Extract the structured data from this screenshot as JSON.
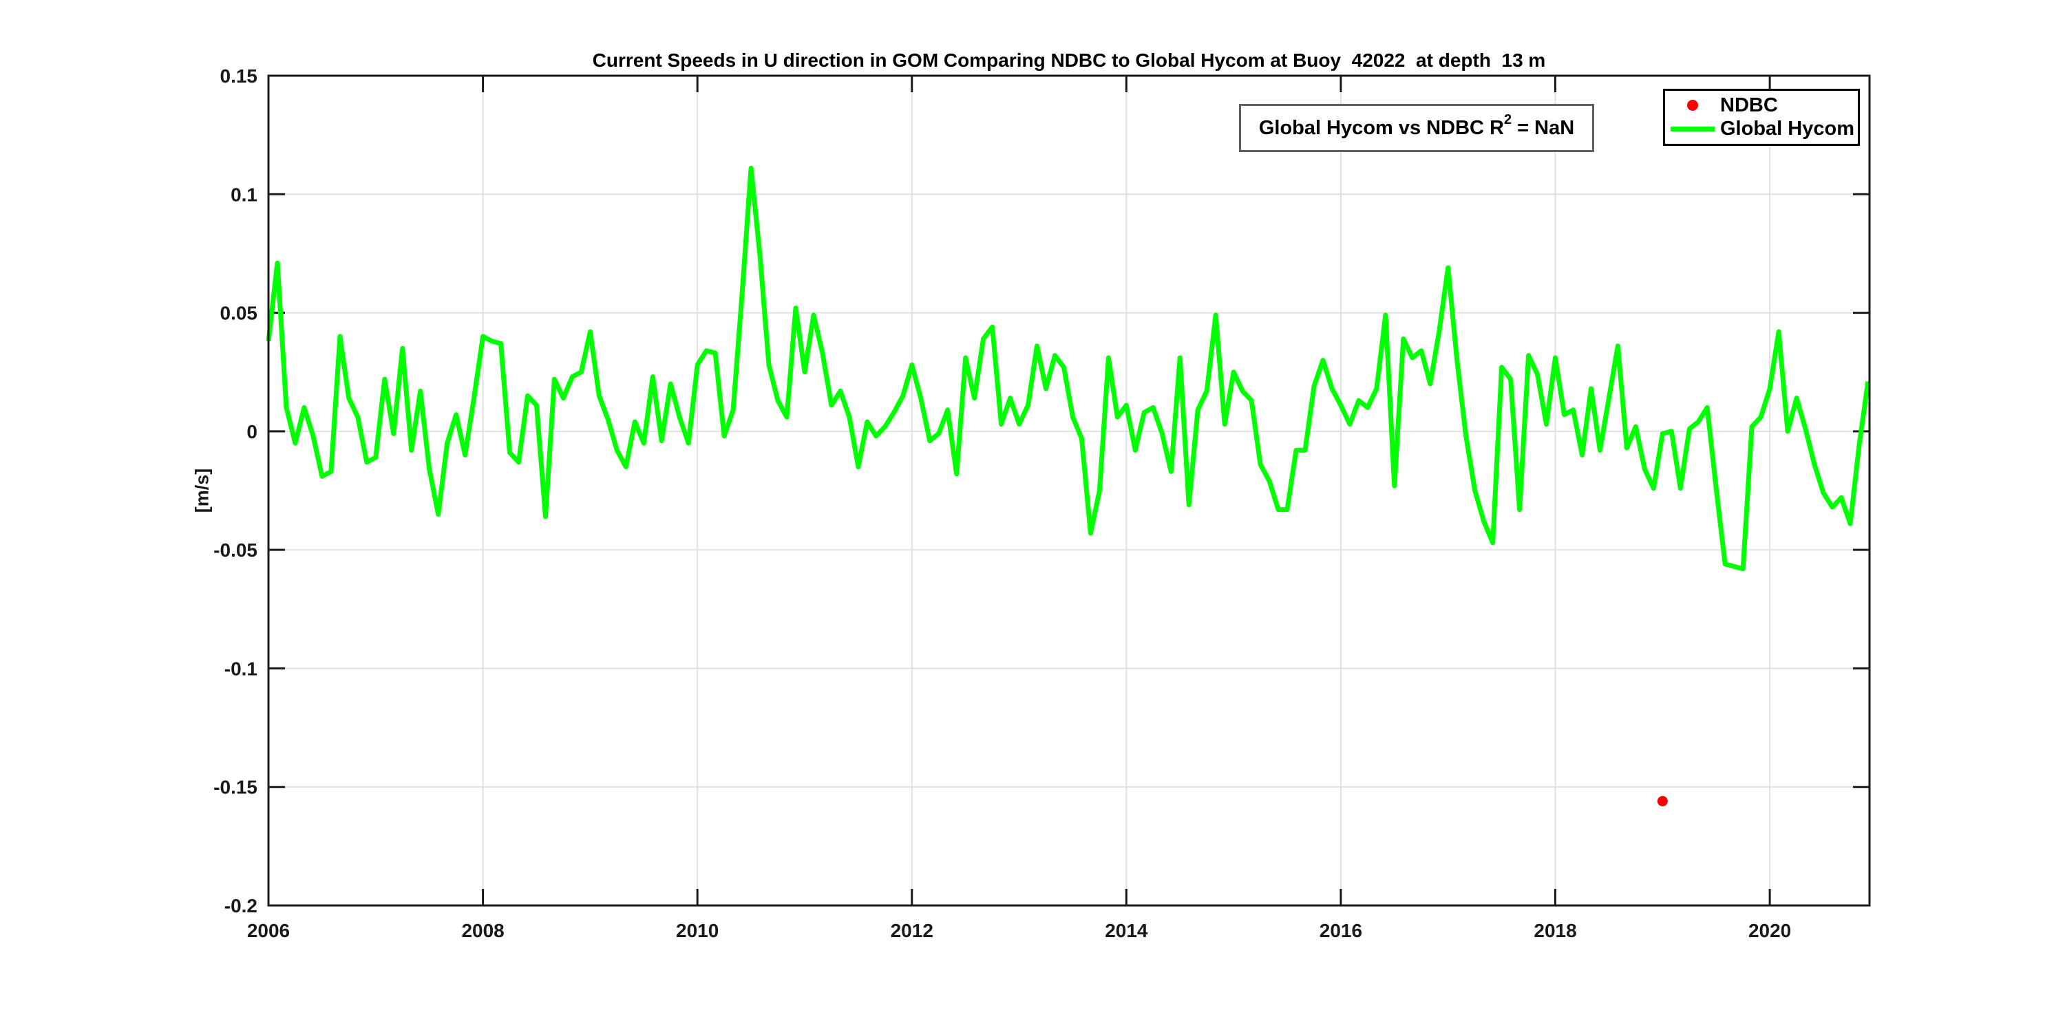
{
  "title": "Current Speeds in U direction in GOM Comparing NDBC to Global Hycom at Buoy  42022  at depth  13 m",
  "annotation": {
    "prefix": "Global Hycom vs NDBC R",
    "sup": "2",
    "suffix": " = NaN"
  },
  "legend": {
    "items": [
      {
        "label": "NDBC",
        "marker": "red-dot-marker"
      },
      {
        "label": "Global Hycom",
        "marker": "green-line-marker"
      }
    ]
  },
  "colors": {
    "hycom_green": "#00ff00",
    "ndbc_red": "#ff0000",
    "grid": "#e0e0e0",
    "axis": "#1a1a1a"
  },
  "chart_data": {
    "type": "line",
    "title": "Current Speeds in U direction in GOM Comparing NDBC to Global Hycom at Buoy  42022  at depth  13 m",
    "xlabel": "",
    "ylabel": "[m/s]",
    "xlim": [
      2006,
      2020.93
    ],
    "ylim": [
      -0.2,
      0.15
    ],
    "grid": true,
    "legend_position": "top-right",
    "x_ticks": [
      2006,
      2008,
      2010,
      2012,
      2014,
      2016,
      2018,
      2020
    ],
    "x_tick_labels": [
      "2006",
      "2008",
      "2010",
      "2012",
      "2014",
      "2016",
      "2018",
      "2020"
    ],
    "y_ticks": [
      0.15,
      0.1,
      0.05,
      0,
      -0.05,
      -0.1,
      -0.15,
      -0.2
    ],
    "y_tick_labels": [
      "0.15",
      "0.1",
      "0.05",
      "0",
      "-0.05",
      "-0.1",
      "-0.15",
      "-0.2"
    ],
    "series": [
      {
        "name": "NDBC",
        "type": "scatter",
        "color": "#ff0000",
        "marker_size": 15,
        "points": [
          [
            2019.0,
            -0.156
          ]
        ]
      },
      {
        "name": "Global Hycom",
        "type": "line",
        "color": "#00ff00",
        "line_width": 7,
        "x_start": 2006.0,
        "x_step_years": 0.0833333,
        "values": [
          0.038,
          0.071,
          0.01,
          -0.005,
          0.01,
          -0.002,
          -0.019,
          -0.017,
          0.04,
          0.014,
          0.006,
          -0.013,
          -0.011,
          0.022,
          -0.001,
          0.035,
          -0.008,
          0.017,
          -0.016,
          -0.035,
          -0.005,
          0.007,
          -0.01,
          0.014,
          0.04,
          0.038,
          0.037,
          -0.009,
          -0.013,
          0.015,
          0.011,
          -0.036,
          0.022,
          0.014,
          0.023,
          0.025,
          0.042,
          0.015,
          0.005,
          -0.008,
          -0.015,
          0.004,
          -0.005,
          0.023,
          -0.004,
          0.02,
          0.006,
          -0.005,
          0.028,
          0.034,
          0.033,
          -0.002,
          0.009,
          0.058,
          0.111,
          0.074,
          0.028,
          0.013,
          0.006,
          0.052,
          0.025,
          0.049,
          0.033,
          0.011,
          0.017,
          0.006,
          -0.015,
          0.004,
          -0.002,
          0.002,
          0.008,
          0.015,
          0.028,
          0.014,
          -0.004,
          -0.001,
          0.009,
          -0.018,
          0.031,
          0.014,
          0.039,
          0.044,
          0.003,
          0.014,
          0.003,
          0.011,
          0.036,
          0.018,
          0.032,
          0.027,
          0.006,
          -0.003,
          -0.043,
          -0.025,
          0.031,
          0.006,
          0.011,
          -0.008,
          0.008,
          0.01,
          -0.001,
          -0.017,
          0.031,
          -0.031,
          0.009,
          0.017,
          0.049,
          0.003,
          0.025,
          0.017,
          0.013,
          -0.014,
          -0.021,
          -0.033,
          -0.033,
          -0.008,
          -0.008,
          0.019,
          0.03,
          0.018,
          0.011,
          0.003,
          0.013,
          0.01,
          0.018,
          0.049,
          -0.023,
          0.039,
          0.031,
          0.034,
          0.02,
          0.042,
          0.069,
          0.03,
          -0.002,
          -0.025,
          -0.038,
          -0.047,
          0.027,
          0.022,
          -0.033,
          0.032,
          0.024,
          0.003,
          0.031,
          0.007,
          0.009,
          -0.01,
          0.018,
          -0.008,
          0.014,
          0.036,
          -0.007,
          0.002,
          -0.016,
          -0.024,
          -0.001,
          0.0,
          -0.024,
          0.001,
          0.004,
          0.01,
          -0.024,
          -0.056,
          -0.057,
          -0.058,
          0.002,
          0.006,
          0.018,
          0.042,
          0.0,
          0.014,
          0.001,
          -0.014,
          -0.026,
          -0.032,
          -0.028,
          -0.039,
          -0.006,
          0.021
        ]
      }
    ]
  }
}
